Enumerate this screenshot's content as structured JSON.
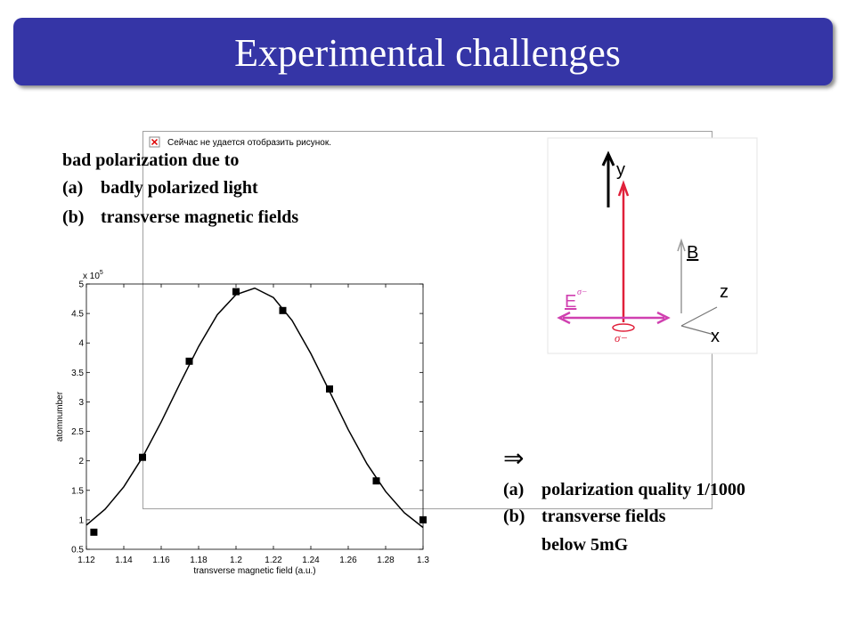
{
  "title": "Experimental challenges",
  "image_placeholder": "Сейчас не удается отобразить рисунок.",
  "left_text": {
    "heading": "bad polarization due to",
    "items": [
      {
        "marker": "(a)",
        "text": "badly polarized light"
      },
      {
        "marker": "(b)",
        "text": "transverse magnetic fields"
      }
    ]
  },
  "right_text": {
    "arrow": "⇒",
    "items": [
      {
        "marker": "(a)",
        "text": "polarization quality 1/1000"
      },
      {
        "marker": "(b)",
        "text": "transverse fields",
        "continuation": "below 5mG"
      }
    ]
  },
  "diagram": {
    "y": "y",
    "B": "B",
    "z": "z",
    "x": "x",
    "E": "E",
    "E_sup": "σ−",
    "sigma": "σ−"
  },
  "chart_data": {
    "type": "scatter",
    "xlabel": "transverse magnetic field (a.u.)",
    "ylabel": "atomnumber",
    "y_multiplier": "x 10",
    "y_multiplier_exp": "5",
    "xlim": [
      1.12,
      1.3
    ],
    "xticks": [
      1.12,
      1.14,
      1.16,
      1.18,
      1.2,
      1.22,
      1.24,
      1.26,
      1.28,
      1.3
    ],
    "ylim": [
      0.5,
      5
    ],
    "yticks": [
      0.5,
      1,
      1.5,
      2,
      2.5,
      3,
      3.5,
      4,
      4.5,
      5
    ],
    "series": [
      {
        "color": "#000000",
        "style": "markers",
        "x": [
          1.124,
          1.15,
          1.175,
          1.2,
          1.225,
          1.25,
          1.275,
          1.3
        ],
        "values": [
          0.79,
          2.06,
          3.69,
          4.87,
          4.55,
          3.22,
          1.66,
          1.0
        ]
      },
      {
        "color": "#000000",
        "style": "line",
        "x": [
          1.12,
          1.13,
          1.14,
          1.15,
          1.16,
          1.17,
          1.18,
          1.19,
          1.2,
          1.21,
          1.22,
          1.23,
          1.24,
          1.25,
          1.26,
          1.27,
          1.28,
          1.29,
          1.3
        ],
        "values": [
          0.91,
          1.18,
          1.56,
          2.06,
          2.66,
          3.31,
          3.94,
          4.48,
          4.82,
          4.93,
          4.77,
          4.38,
          3.82,
          3.18,
          2.53,
          1.95,
          1.48,
          1.12,
          0.87
        ]
      }
    ]
  }
}
